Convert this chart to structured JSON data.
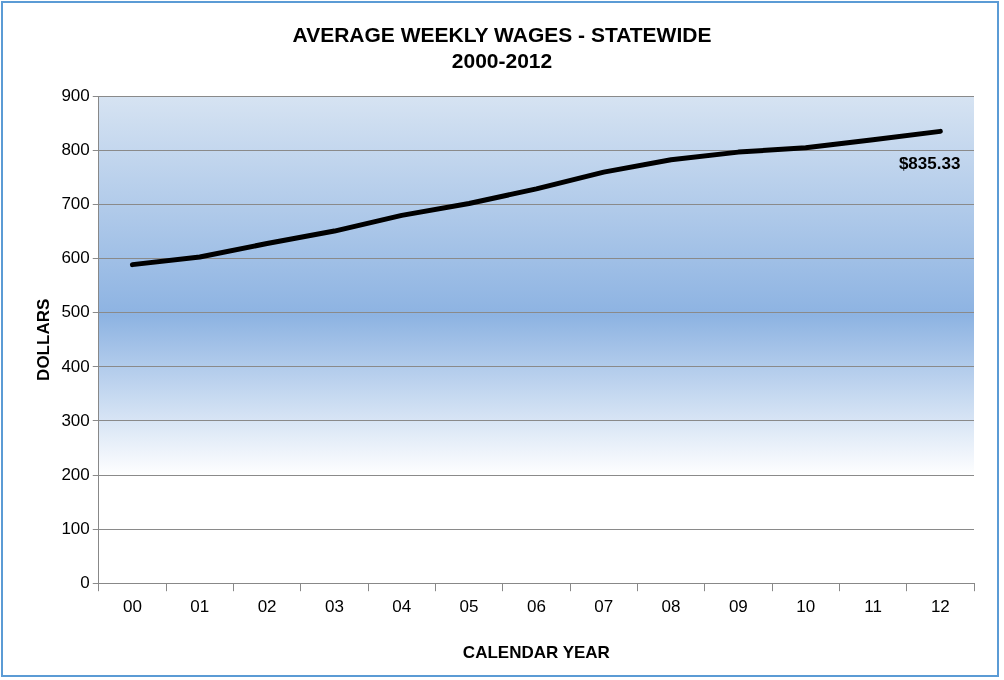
{
  "chart_data": {
    "type": "line",
    "title": "AVERAGE WEEKLY WAGES - STATEWIDE\n2000-2012",
    "xlabel": "CALENDAR YEAR",
    "ylabel": "DOLLARS",
    "categories": [
      "00",
      "01",
      "02",
      "03",
      "04",
      "05",
      "06",
      "07",
      "08",
      "09",
      "10",
      "11",
      "12"
    ],
    "series": [
      {
        "color": "#000000",
        "values": [
          589,
          603,
          628,
          651,
          680,
          702,
          729,
          760,
          783,
          797,
          805,
          820,
          835.33
        ]
      }
    ],
    "ylim": [
      0,
      900
    ],
    "yticks": [
      0,
      100,
      200,
      300,
      400,
      500,
      600,
      700,
      800,
      900
    ],
    "grid": "y",
    "legend": false,
    "marker": "none",
    "line_style": "solid",
    "annotations": [
      {
        "text": "$835.33",
        "x": "12",
        "y": 835.33
      }
    ]
  }
}
